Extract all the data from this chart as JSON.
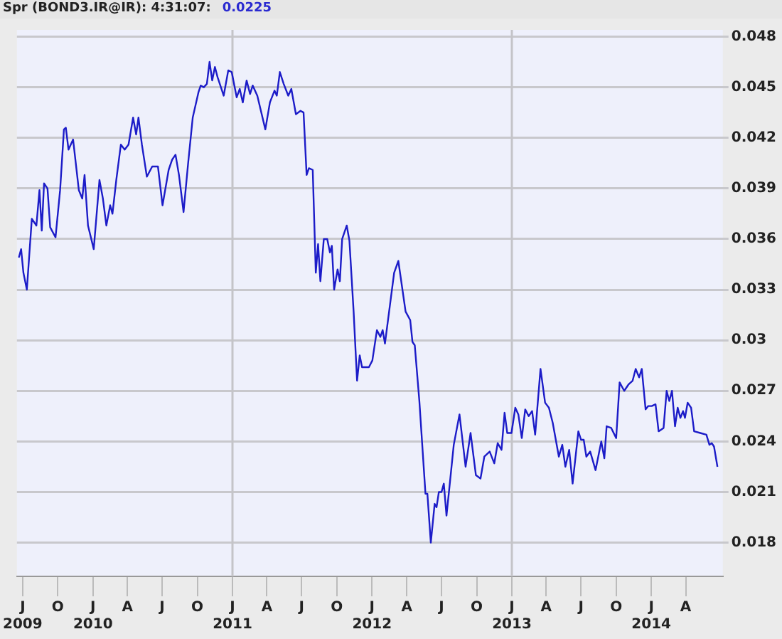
{
  "chart_data": {
    "type": "line",
    "title": "Spr (BOND3.IR@IR): 4:31:07:",
    "subtitle": "0.0225",
    "x": [
      "2009-06-21",
      "2009-06-27",
      "2009-07-03",
      "2009-07-12",
      "2009-07-25",
      "2009-08-06",
      "2009-08-14",
      "2009-08-20",
      "2009-08-26",
      "2009-09-04",
      "2009-09-11",
      "2009-09-25",
      "2009-10-07",
      "2009-10-17",
      "2009-10-22",
      "2009-10-29",
      "2009-11-10",
      "2009-11-25",
      "2009-12-04",
      "2009-12-10",
      "2009-12-19",
      "2010-01-03",
      "2010-01-18",
      "2010-01-27",
      "2010-02-05",
      "2010-02-15",
      "2010-02-21",
      "2010-03-03",
      "2010-03-15",
      "2010-03-25",
      "2010-04-04",
      "2010-04-16",
      "2010-04-24",
      "2010-04-30",
      "2010-05-09",
      "2010-05-22",
      "2010-06-05",
      "2010-06-20",
      "2010-07-02",
      "2010-07-18",
      "2010-07-27",
      "2010-08-05",
      "2010-08-14",
      "2010-08-26",
      "2010-09-07",
      "2010-09-19",
      "2010-10-04",
      "2010-10-10",
      "2010-10-18",
      "2010-10-26",
      "2010-11-02",
      "2010-11-09",
      "2010-11-16",
      "2010-11-23",
      "2010-12-09",
      "2010-12-21",
      "2010-12-30",
      "2011-01-12",
      "2011-01-20",
      "2011-01-28",
      "2011-02-07",
      "2011-02-16",
      "2011-02-23",
      "2011-03-07",
      "2011-03-28",
      "2011-04-09",
      "2011-04-21",
      "2011-04-27",
      "2011-05-05",
      "2011-05-15",
      "2011-05-27",
      "2011-06-04",
      "2011-06-16",
      "2011-06-28",
      "2011-07-06",
      "2011-07-14",
      "2011-07-20",
      "2011-07-30",
      "2011-08-07",
      "2011-08-13",
      "2011-08-19",
      "2011-08-28",
      "2011-09-06",
      "2011-09-13",
      "2011-09-18",
      "2011-09-24",
      "2011-10-03",
      "2011-10-09",
      "2011-10-15",
      "2011-10-27",
      "2011-11-03",
      "2011-11-14",
      "2011-11-23",
      "2011-11-30",
      "2011-12-06",
      "2011-12-24",
      "2012-01-02",
      "2012-01-14",
      "2012-01-23",
      "2012-01-29",
      "2012-02-04",
      "2012-02-28",
      "2012-03-10",
      "2012-03-29",
      "2012-04-10",
      "2012-04-16",
      "2012-04-22",
      "2012-05-04",
      "2012-05-20",
      "2012-05-25",
      "2012-06-03",
      "2012-06-13",
      "2012-06-18",
      "2012-06-24",
      "2012-07-01",
      "2012-07-07",
      "2012-07-14",
      "2012-07-24",
      "2012-08-02",
      "2012-08-17",
      "2012-09-02",
      "2012-09-15",
      "2012-09-29",
      "2012-10-11",
      "2012-10-21",
      "2012-11-04",
      "2012-11-16",
      "2012-11-25",
      "2012-12-05",
      "2012-12-13",
      "2012-12-20",
      "2012-12-31",
      "2013-01-10",
      "2013-01-18",
      "2013-01-27",
      "2013-02-05",
      "2013-02-14",
      "2013-02-23",
      "2013-03-03",
      "2013-03-17",
      "2013-03-29",
      "2013-04-08",
      "2013-04-18",
      "2013-05-04",
      "2013-05-13",
      "2013-05-21",
      "2013-05-31",
      "2013-06-09",
      "2013-06-24",
      "2013-07-01",
      "2013-07-08",
      "2013-07-15",
      "2013-07-25",
      "2013-08-08",
      "2013-08-23",
      "2013-08-31",
      "2013-09-06",
      "2013-09-18",
      "2013-10-01",
      "2013-10-10",
      "2013-10-22",
      "2013-11-03",
      "2013-11-13",
      "2013-11-21",
      "2013-11-30",
      "2013-12-07",
      "2013-12-17",
      "2013-12-24",
      "2014-01-02",
      "2014-01-12",
      "2014-01-20",
      "2014-02-02",
      "2014-02-10",
      "2014-02-17",
      "2014-02-24",
      "2014-03-04",
      "2014-03-11",
      "2014-03-18",
      "2014-03-25",
      "2014-03-30",
      "2014-04-06",
      "2014-04-15",
      "2014-04-23",
      "2014-05-09",
      "2014-05-25",
      "2014-06-02",
      "2014-06-08",
      "2014-06-14",
      "2014-06-23"
    ],
    "series": [
      {
        "color": "#1c1cc8",
        "values": [
          0.0349,
          0.0354,
          0.034,
          0.033,
          0.0372,
          0.0368,
          0.0389,
          0.0365,
          0.0393,
          0.039,
          0.0367,
          0.0361,
          0.0389,
          0.0425,
          0.0426,
          0.0413,
          0.0419,
          0.0389,
          0.0384,
          0.0398,
          0.0368,
          0.0354,
          0.0395,
          0.0384,
          0.0368,
          0.038,
          0.0375,
          0.0395,
          0.0416,
          0.0413,
          0.0416,
          0.0432,
          0.0422,
          0.0432,
          0.0416,
          0.0397,
          0.0403,
          0.0403,
          0.038,
          0.0401,
          0.0407,
          0.041,
          0.0398,
          0.0376,
          0.0405,
          0.0432,
          0.0447,
          0.0451,
          0.045,
          0.0452,
          0.0465,
          0.0454,
          0.0462,
          0.0456,
          0.0445,
          0.046,
          0.0459,
          0.0444,
          0.0449,
          0.0441,
          0.0454,
          0.0446,
          0.0451,
          0.0445,
          0.0425,
          0.0441,
          0.0448,
          0.0445,
          0.0459,
          0.0452,
          0.0445,
          0.0449,
          0.0434,
          0.0436,
          0.0435,
          0.0398,
          0.0402,
          0.0401,
          0.034,
          0.0357,
          0.0335,
          0.036,
          0.036,
          0.0352,
          0.0356,
          0.033,
          0.0342,
          0.0335,
          0.036,
          0.0368,
          0.0359,
          0.0317,
          0.0276,
          0.0291,
          0.0284,
          0.0284,
          0.0288,
          0.0306,
          0.0302,
          0.0306,
          0.0298,
          0.034,
          0.0347,
          0.0317,
          0.0312,
          0.0299,
          0.0297,
          0.0264,
          0.0209,
          0.0209,
          0.018,
          0.0203,
          0.0201,
          0.021,
          0.021,
          0.0215,
          0.0196,
          0.0218,
          0.0238,
          0.0256,
          0.0225,
          0.0245,
          0.022,
          0.0218,
          0.0231,
          0.0234,
          0.0227,
          0.0239,
          0.0235,
          0.0257,
          0.0245,
          0.0245,
          0.026,
          0.0256,
          0.0242,
          0.0259,
          0.0255,
          0.0258,
          0.0244,
          0.0283,
          0.0263,
          0.026,
          0.0251,
          0.0231,
          0.0238,
          0.0225,
          0.0235,
          0.0215,
          0.0246,
          0.0241,
          0.0241,
          0.0231,
          0.0234,
          0.0223,
          0.024,
          0.023,
          0.0249,
          0.0248,
          0.0242,
          0.0275,
          0.027,
          0.0274,
          0.0276,
          0.0283,
          0.0278,
          0.0283,
          0.0259,
          0.0261,
          0.0261,
          0.0262,
          0.0246,
          0.0248,
          0.027,
          0.0264,
          0.027,
          0.0249,
          0.026,
          0.0254,
          0.0258,
          0.0254,
          0.0263,
          0.026,
          0.0246,
          0.0245,
          0.0244,
          0.0238,
          0.0239,
          0.0237,
          0.0225
        ]
      }
    ],
    "xlim": [
      "2009-06-16",
      "2014-07-07"
    ],
    "xticks": [
      {
        "value": "2009-07",
        "label": "J\n2009"
      },
      {
        "value": "2009-10",
        "label": "O"
      },
      {
        "value": "2010-01",
        "label": "J\n2010"
      },
      {
        "value": "2010-04",
        "label": "A"
      },
      {
        "value": "2010-07",
        "label": "J"
      },
      {
        "value": "2010-10",
        "label": "O"
      },
      {
        "value": "2011-01",
        "label": "J\n2011"
      },
      {
        "value": "2011-04",
        "label": "A"
      },
      {
        "value": "2011-07",
        "label": "J"
      },
      {
        "value": "2011-10",
        "label": "O"
      },
      {
        "value": "2012-01",
        "label": "J\n2012"
      },
      {
        "value": "2012-04",
        "label": "A"
      },
      {
        "value": "2012-07",
        "label": "J"
      },
      {
        "value": "2012-10",
        "label": "O"
      },
      {
        "value": "2013-01",
        "label": "J\n2013"
      },
      {
        "value": "2013-04",
        "label": "A"
      },
      {
        "value": "2013-07",
        "label": "J"
      },
      {
        "value": "2013-10",
        "label": "O"
      },
      {
        "value": "2014-01",
        "label": "J\n2014"
      },
      {
        "value": "2014-04",
        "label": "A"
      }
    ],
    "ylim": [
      0.016,
      0.0484
    ],
    "yticks": [
      0.018,
      0.021,
      0.024,
      0.027,
      0.03,
      0.033,
      0.036,
      0.039,
      0.042,
      0.045,
      0.048
    ],
    "grid": "y",
    "legend": false,
    "marker": "none",
    "line_style": "solid",
    "ref_lines": [
      {
        "axis": "x",
        "value": "2011-01",
        "color": "#c4c4c8"
      },
      {
        "axis": "x",
        "value": "2013-01",
        "color": "#c4c4c8"
      }
    ]
  }
}
